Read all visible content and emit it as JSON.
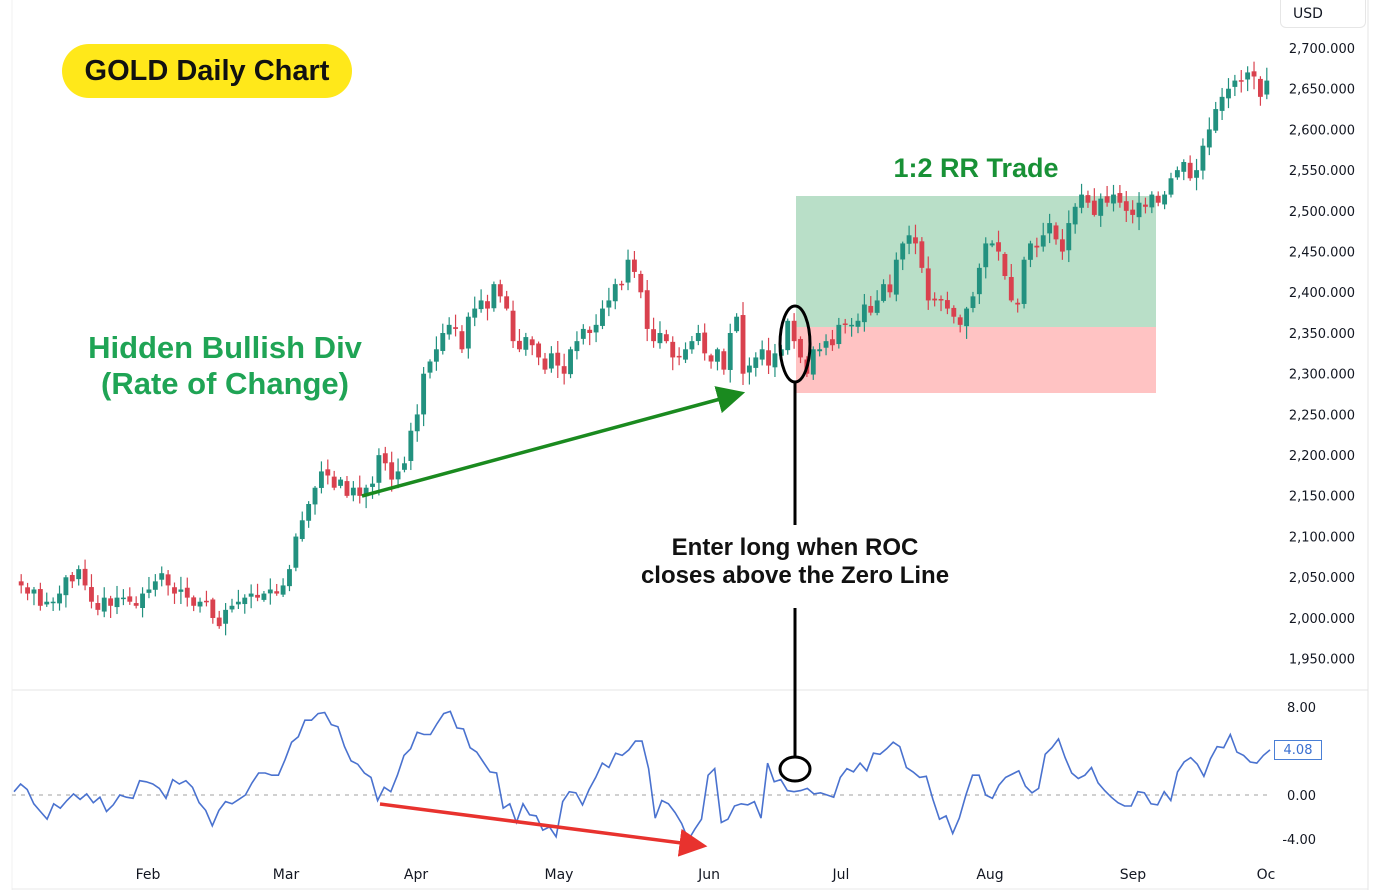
{
  "title": "GOLD Daily Chart",
  "currency": "USD",
  "annotations": {
    "hidden_div_line1": "Hidden Bullish Div",
    "hidden_div_line2": "(Rate of Change)",
    "rr_trade": "1:2 RR Trade",
    "entry_line1": "Enter long when ROC",
    "entry_line2": "closes above the Zero Line"
  },
  "price_axis": [
    "2,700.000",
    "2,650.000",
    "2,600.000",
    "2,550.000",
    "2,500.000",
    "2,450.000",
    "2,400.000",
    "2,350.000",
    "2,300.000",
    "2,250.000",
    "2,200.000",
    "2,150.000",
    "2,100.000",
    "2,050.000",
    "2,000.000",
    "1,950.000"
  ],
  "roc_axis": [
    "8.00",
    "0.00",
    "-4.00"
  ],
  "roc_current": "4.08",
  "months": [
    "Feb",
    "Mar",
    "Apr",
    "May",
    "Jun",
    "Jul",
    "Aug",
    "Sep",
    "Oc"
  ],
  "colors": {
    "up": "#22917f",
    "down": "#d9414e",
    "roc_line": "#4a72cf",
    "title_bg": "#ffe81a",
    "profit_zone": "#b9dfc8",
    "loss_zone": "#ffc3c3",
    "bull_arrow": "#1a8a1f",
    "bear_arrow": "#e8322e"
  },
  "chart_data": [
    {
      "type": "candlestick",
      "title": "GOLD Daily Chart",
      "ylabel": "USD",
      "ylim": [
        1930,
        2720
      ],
      "x_ticks": [
        "Feb",
        "Mar",
        "Apr",
        "May",
        "Jun",
        "Jul",
        "Aug",
        "Sep",
        "Oc"
      ],
      "closes": [
        2040,
        2030,
        2035,
        2015,
        2020,
        2020,
        2030,
        2050,
        2045,
        2060,
        2040,
        2020,
        2010,
        2025,
        2015,
        2025,
        2025,
        2020,
        2015,
        2030,
        2035,
        2045,
        2055,
        2040,
        2030,
        2035,
        2025,
        2015,
        2020,
        2020,
        2000,
        1990,
        2010,
        2015,
        2020,
        2025,
        2030,
        2025,
        2030,
        2035,
        2030,
        2040,
        2060,
        2100,
        2120,
        2140,
        2160,
        2180,
        2175,
        2160,
        2170,
        2150,
        2160,
        2150,
        2160,
        2165,
        2200,
        2190,
        2170,
        2180,
        2190,
        2230,
        2250,
        2300,
        2315,
        2330,
        2350,
        2360,
        2355,
        2330,
        2370,
        2380,
        2390,
        2380,
        2410,
        2395,
        2380,
        2340,
        2330,
        2345,
        2335,
        2320,
        2305,
        2325,
        2310,
        2300,
        2330,
        2340,
        2355,
        2350,
        2360,
        2380,
        2390,
        2410,
        2410,
        2440,
        2425,
        2400,
        2355,
        2340,
        2350,
        2340,
        2320,
        2320,
        2330,
        2340,
        2350,
        2325,
        2315,
        2330,
        2305,
        2350,
        2370,
        2300,
        2310,
        2320,
        2330,
        2310,
        2325,
        2330,
        2365,
        2340,
        2320,
        2300,
        2330,
        2330,
        2340,
        2335,
        2360,
        2360,
        2360,
        2365,
        2385,
        2375,
        2390,
        2410,
        2400,
        2440,
        2460,
        2470,
        2460,
        2430,
        2390,
        2390,
        2390,
        2380,
        2370,
        2360,
        2380,
        2395,
        2430,
        2460,
        2460,
        2450,
        2420,
        2390,
        2385,
        2440,
        2460,
        2455,
        2470,
        2485,
        2465,
        2450,
        2485,
        2505,
        2520,
        2510,
        2495,
        2515,
        2510,
        2520,
        2510,
        2500,
        2495,
        2510,
        2505,
        2520,
        2510,
        2520,
        2540,
        2550,
        2560,
        2540,
        2550,
        2580,
        2600,
        2625,
        2640,
        2650,
        2660,
        2660,
        2670,
        2665,
        2640,
        2660
      ]
    },
    {
      "type": "line",
      "title": "Rate of Change (ROC)",
      "ylim": [
        -5,
        9
      ],
      "y_ticks": [
        8,
        0,
        -4
      ],
      "last_value": 4.08,
      "values": [
        0.3,
        1.0,
        0.5,
        -0.8,
        -1.5,
        -2.2,
        -0.8,
        -1.2,
        -0.5,
        0.1,
        -0.4,
        0.1,
        -0.7,
        -0.2,
        -1.5,
        -0.9,
        0.0,
        -0.2,
        -0.3,
        1.3,
        1.2,
        1.0,
        0.6,
        -0.3,
        1.4,
        1.0,
        1.3,
        0.7,
        -0.7,
        -1.4,
        -2.8,
        -1.4,
        -0.6,
        -0.8,
        -0.4,
        0.0,
        1.1,
        2.0,
        2.0,
        1.8,
        1.8,
        3.2,
        4.8,
        5.3,
        6.8,
        6.8,
        7.4,
        7.5,
        6.4,
        6.2,
        4.4,
        3.1,
        2.8,
        2.0,
        1.6,
        -0.5,
        0.7,
        0.3,
        1.8,
        3.6,
        4.2,
        5.7,
        5.5,
        5.5,
        6.5,
        7.4,
        7.6,
        6.1,
        6.0,
        4.3,
        3.9,
        3.0,
        2.1,
        2.0,
        -1.2,
        -0.8,
        -2.5,
        -0.8,
        -1.8,
        -1.9,
        -3.2,
        -2.9,
        -3.8,
        -0.6,
        0.3,
        0.2,
        -0.9,
        0.5,
        1.6,
        2.9,
        2.5,
        3.8,
        3.6,
        4.1,
        4.9,
        4.9,
        2.4,
        -2.1,
        -0.5,
        -0.8,
        -1.6,
        -2.6,
        -4.1,
        -3.1,
        -2.2,
        1.8,
        2.4,
        -2.5,
        -2.2,
        -1.0,
        -0.8,
        -0.9,
        -0.6,
        -2.1,
        2.9,
        1.2,
        1.4,
        0.4,
        0.3,
        0.4,
        0.6,
        0.1,
        0.2,
        0.0,
        -0.2,
        1.6,
        2.4,
        2.1,
        2.9,
        2.2,
        3.8,
        3.7,
        4.2,
        4.8,
        4.4,
        2.5,
        2.1,
        1.6,
        1.7,
        -0.4,
        -2.2,
        -1.9,
        -3.5,
        -2.1,
        0.0,
        1.8,
        1.8,
        0.0,
        -0.3,
        0.9,
        1.6,
        1.9,
        2.2,
        0.8,
        0.2,
        0.6,
        3.7,
        4.3,
        5.1,
        3.4,
        2.0,
        1.5,
        1.8,
        2.5,
        1.1,
        0.4,
        -0.2,
        -0.7,
        -1.0,
        -1.0,
        0.3,
        0.2,
        -0.8,
        -0.9,
        0.3,
        -0.5,
        2.1,
        3.0,
        3.4,
        2.8,
        1.7,
        3.3,
        4.4,
        4.3,
        5.5,
        3.9,
        3.6,
        3.0,
        2.9,
        3.6,
        4.1
      ]
    }
  ]
}
